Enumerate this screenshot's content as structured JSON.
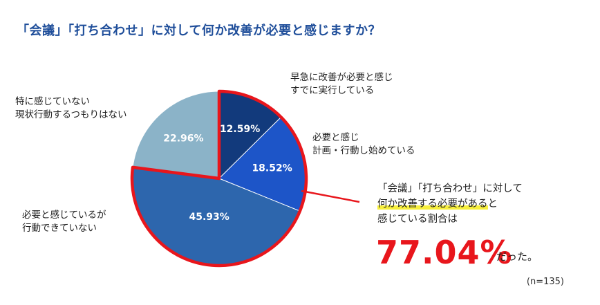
{
  "title": "「会議」「打ち合わせ」に対して何か改善が必要と感じますか？",
  "chart_data": {
    "type": "pie",
    "slices": [
      {
        "name_lines": [
          "早急に改善が必要と感じ",
          "すでに実行している"
        ],
        "value": 12.59,
        "value_label": "12.59%",
        "color": "#123a7c"
      },
      {
        "name_lines": [
          "必要と感じ",
          "計画・行動し始めている"
        ],
        "value": 18.52,
        "value_label": "18.52%",
        "color": "#1d55c8"
      },
      {
        "name_lines": [
          "必要と感じているが",
          "行動できていない"
        ],
        "value": 45.93,
        "value_label": "45.93%",
        "color": "#2d66ad"
      },
      {
        "name_lines": [
          "特に感じていない",
          "現状行動するつもりはない"
        ],
        "value": 22.96,
        "value_label": "22.96%",
        "color": "#8bb3c8"
      }
    ],
    "highlight_color": "#e8161c"
  },
  "callout": {
    "line1": "「会議」「打ち合わせ」に対して",
    "line2_highlight": "何か改善する必要がある",
    "line2_rest": "と",
    "line3": "感じている割合は",
    "big_value": "77.04%",
    "tail": "だった。"
  },
  "note": "(n=135)"
}
